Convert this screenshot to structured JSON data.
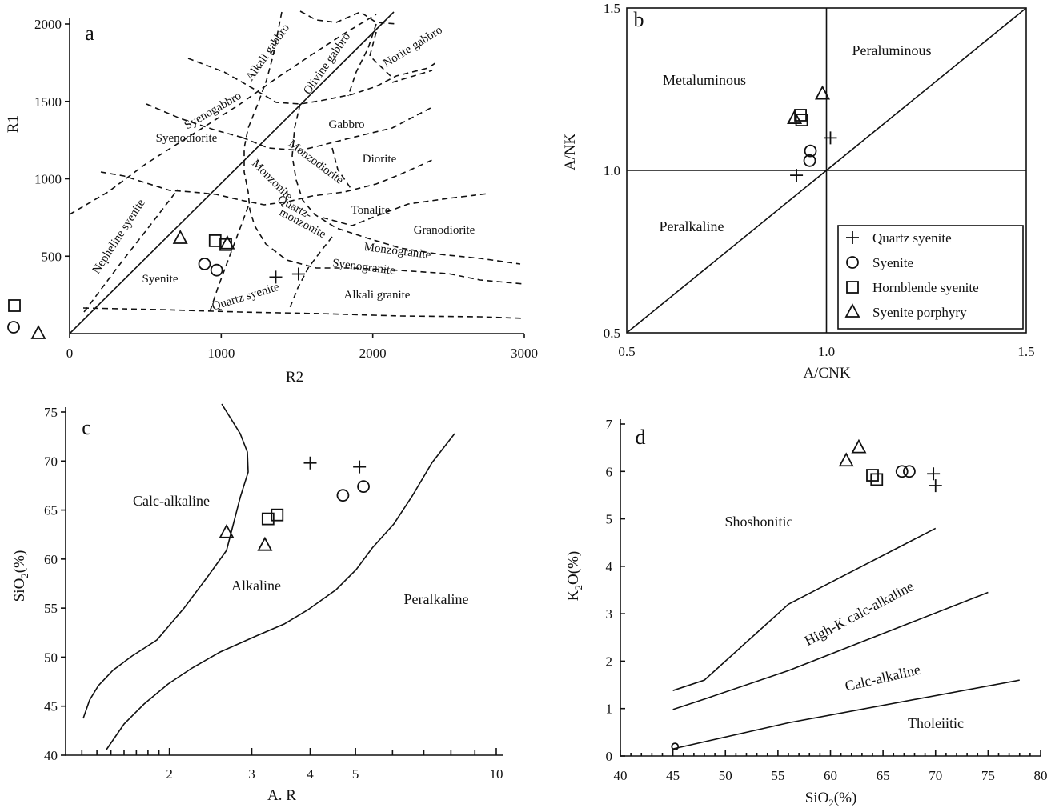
{
  "chart_data": [
    {
      "panel": "a",
      "type": "scatter",
      "xlabel": "R2",
      "ylabel": "R1",
      "xlim": [
        0,
        3000
      ],
      "ylim": [
        0,
        2000
      ],
      "xticks": [
        "0",
        "1000",
        "2000",
        "3000"
      ],
      "yticks": [
        "500",
        "1000",
        "1500",
        "2000"
      ],
      "fields": [
        "Alkali gabbro",
        "Olivine gabbro",
        "Norite gabbro",
        "Syenogabbro",
        "Gabbro",
        "Syenodiorite",
        "Diorite",
        "Monzodiorite",
        "Monzonite",
        "Nepheline syenite",
        "Quartz-",
        "monzonite",
        "Tonalite",
        "Granodiorite",
        "Monzogranite",
        "Syenogranite",
        "Syenite",
        "Quartz syenite",
        "Alkali granite"
      ],
      "series": [
        {
          "name": "Quartz syenite",
          "marker": "plus",
          "points": [
            [
              1360,
              365
            ],
            [
              1510,
              385
            ]
          ]
        },
        {
          "name": "Syenite",
          "marker": "circle",
          "points": [
            [
              890,
              450
            ],
            [
              970,
              410
            ]
          ]
        },
        {
          "name": "Hornblende syenite",
          "marker": "square",
          "points": [
            [
              960,
              600
            ],
            [
              1030,
              575
            ]
          ]
        },
        {
          "name": "Syenite porphyry",
          "marker": "triangle",
          "points": [
            [
              730,
              615
            ],
            [
              1040,
              580
            ]
          ]
        }
      ]
    },
    {
      "panel": "b",
      "type": "scatter",
      "xlabel": "A/CNK",
      "ylabel": "A/NK",
      "xlim": [
        0.5,
        1.5
      ],
      "ylim": [
        0.5,
        1.5
      ],
      "xticks": [
        "0.5",
        "1.0",
        "1.5"
      ],
      "yticks": [
        "0.5",
        "1.0",
        "1.5"
      ],
      "fields": [
        "Peraluminous",
        "Metaluminous",
        "Peralkaline"
      ],
      "legend": [
        "Quartz syenite",
        "Syenite",
        "Hornblende syenite",
        "Syenite porphyry"
      ],
      "series": [
        {
          "name": "Quartz syenite",
          "marker": "plus",
          "points": [
            [
              0.925,
              0.985
            ],
            [
              1.01,
              1.1
            ]
          ]
        },
        {
          "name": "Syenite",
          "marker": "circle",
          "points": [
            [
              0.958,
              1.03
            ],
            [
              0.96,
              1.06
            ]
          ]
        },
        {
          "name": "Hornblende syenite",
          "marker": "square",
          "points": [
            [
              0.935,
              1.17
            ],
            [
              0.938,
              1.155
            ]
          ]
        },
        {
          "name": "Syenite porphyry",
          "marker": "triangle",
          "points": [
            [
              0.92,
              1.16
            ],
            [
              0.99,
              1.235
            ]
          ]
        }
      ]
    },
    {
      "panel": "c",
      "type": "scatter",
      "xlabel": "A. R",
      "ylabel": "SiO2(%)",
      "xscale": "log",
      "xlim": [
        1,
        10
      ],
      "ylim": [
        40,
        75
      ],
      "xticks": [
        "2",
        "3",
        "4",
        "5",
        "10"
      ],
      "yticks": [
        "40",
        "45",
        "50",
        "55",
        "60",
        "65",
        "70",
        "75"
      ],
      "fields": [
        "Calc-alkaline",
        "Alkaline",
        "Peralkaline"
      ],
      "series": [
        {
          "name": "Quartz syenite",
          "marker": "plus",
          "points": [
            [
              4.0,
              69.8
            ],
            [
              5.1,
              69.4
            ]
          ]
        },
        {
          "name": "Syenite",
          "marker": "circle",
          "points": [
            [
              4.7,
              66.5
            ],
            [
              5.2,
              67.4
            ]
          ]
        },
        {
          "name": "Hornblende syenite",
          "marker": "square",
          "points": [
            [
              3.25,
              64.1
            ],
            [
              3.4,
              64.5
            ]
          ]
        },
        {
          "name": "Syenite porphyry",
          "marker": "triangle",
          "points": [
            [
              2.65,
              62.7
            ],
            [
              3.2,
              61.4
            ]
          ]
        }
      ]
    },
    {
      "panel": "d",
      "type": "scatter",
      "xlabel": "SiO2(%)",
      "ylabel": "K2O(%)",
      "xlim": [
        40,
        80
      ],
      "ylim": [
        0,
        7
      ],
      "xticks": [
        "40",
        "45",
        "50",
        "55",
        "60",
        "65",
        "70",
        "75",
        "80"
      ],
      "yticks": [
        "0",
        "1",
        "2",
        "3",
        "4",
        "5",
        "6",
        "7"
      ],
      "fields": [
        "Shoshonitic",
        "High-K calc-alkaline",
        "Calc-alkaline",
        "Tholeiitic"
      ],
      "series": [
        {
          "name": "Quartz syenite",
          "marker": "plus",
          "points": [
            [
              69.8,
              5.95
            ],
            [
              70.0,
              5.7
            ]
          ]
        },
        {
          "name": "Syenite",
          "marker": "circle",
          "points": [
            [
              66.8,
              6.0
            ],
            [
              67.5,
              6.0
            ]
          ]
        },
        {
          "name": "Hornblende syenite",
          "marker": "square",
          "points": [
            [
              64.0,
              5.92
            ],
            [
              64.4,
              5.83
            ]
          ]
        },
        {
          "name": "Syenite porphyry",
          "marker": "triangle",
          "points": [
            [
              61.5,
              6.22
            ],
            [
              62.7,
              6.5
            ]
          ]
        }
      ]
    }
  ]
}
